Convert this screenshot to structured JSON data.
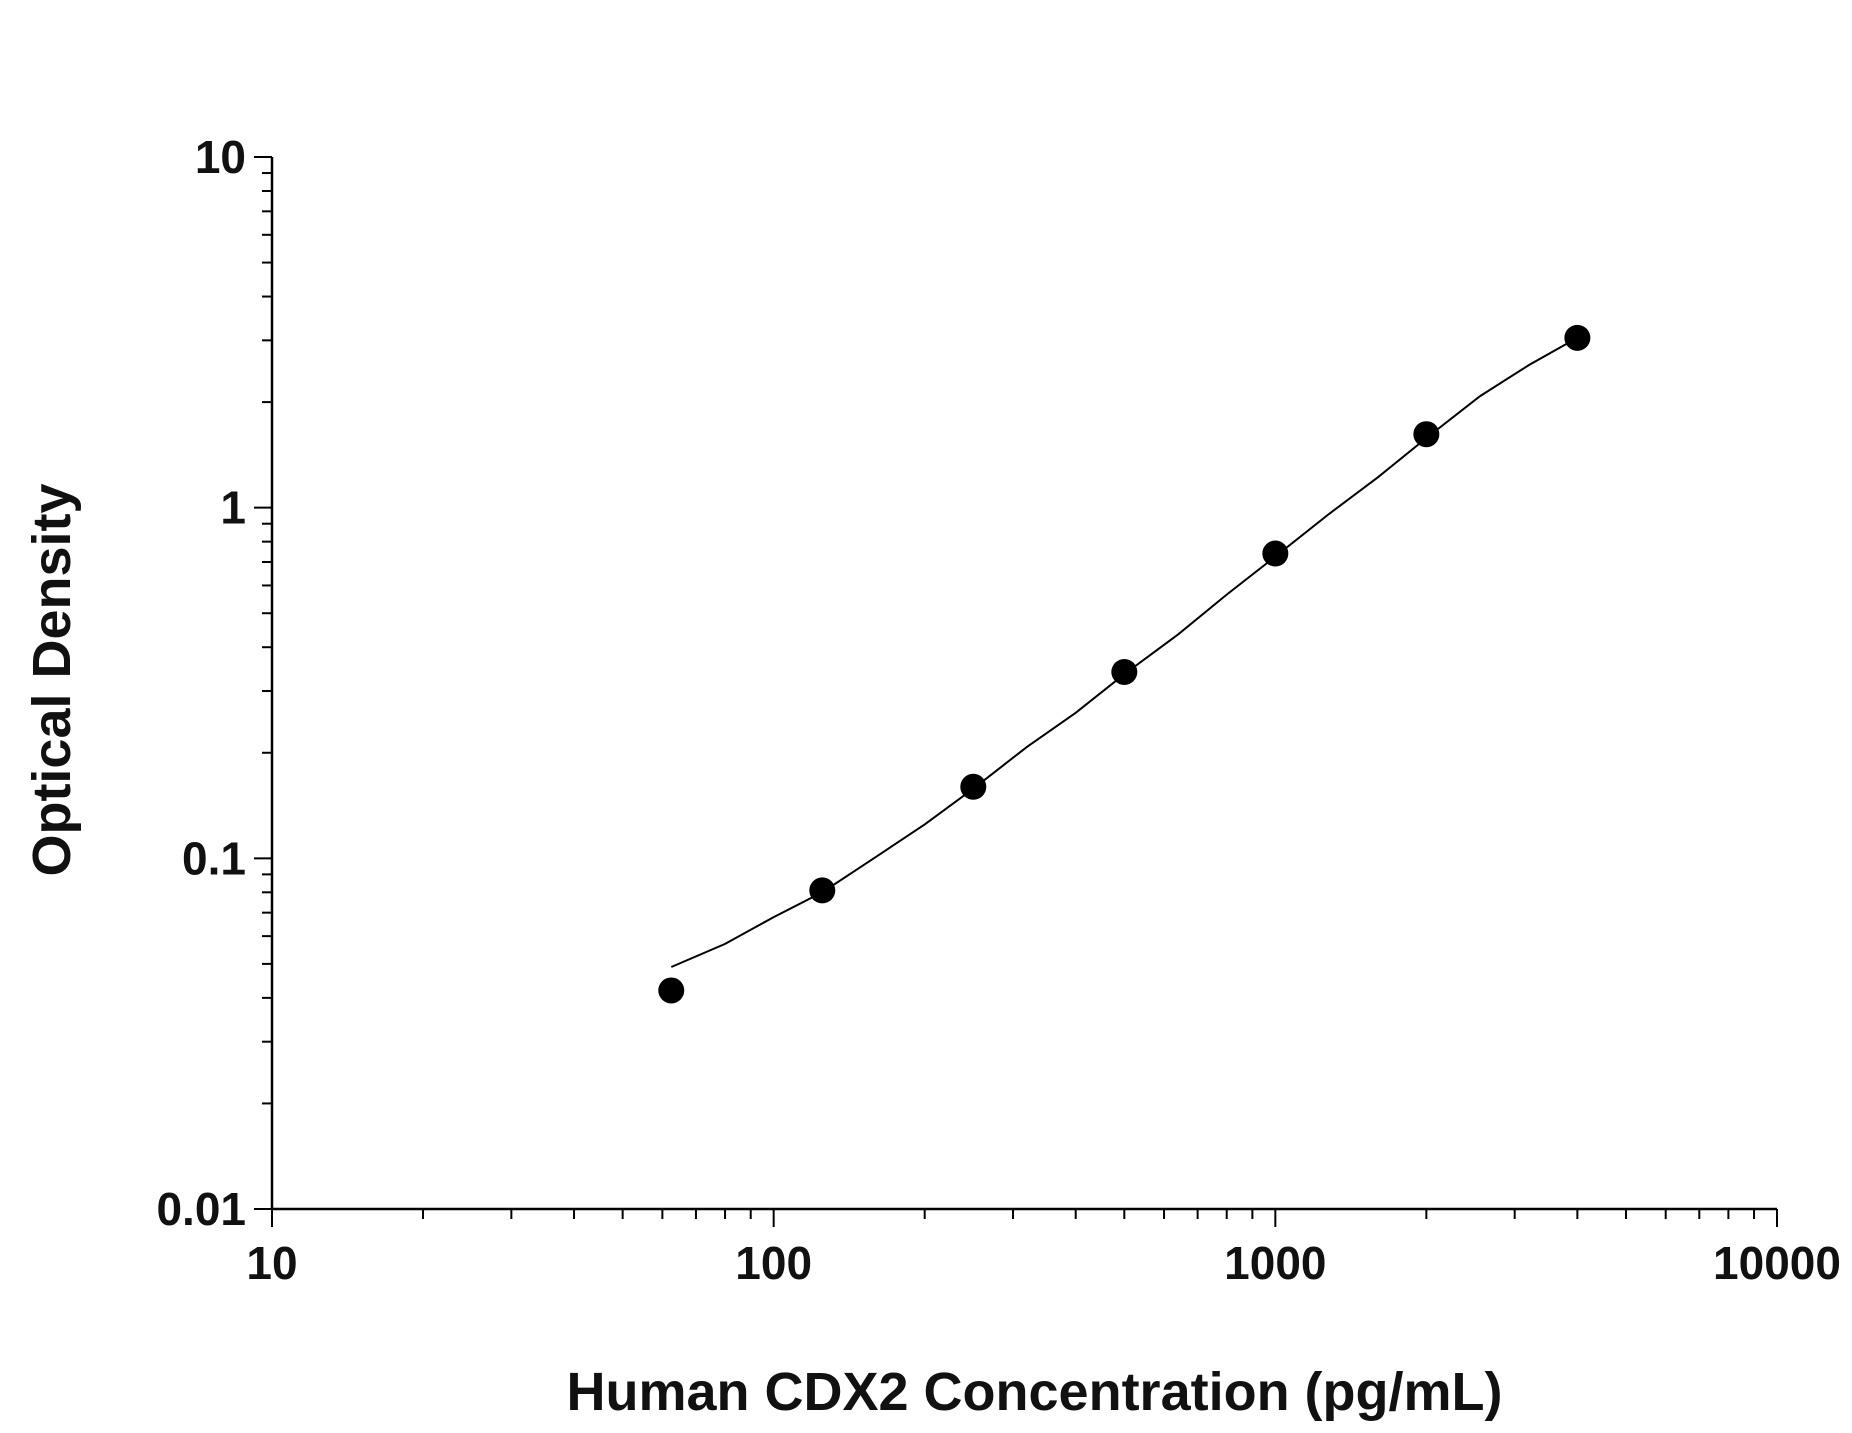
{
  "chart_data": {
    "type": "scatter",
    "title": "",
    "xlabel": "Human CDX2 Concentration (pg/mL)",
    "ylabel": "Optical Density",
    "x_scale": "log",
    "y_scale": "log",
    "xlim": [
      10,
      10000
    ],
    "ylim": [
      0.01,
      10
    ],
    "x_ticks": [
      10,
      100,
      1000,
      10000
    ],
    "x_tick_labels": [
      "10",
      "100",
      "1000",
      "10000"
    ],
    "y_ticks": [
      0.01,
      0.1,
      1,
      10
    ],
    "y_tick_labels": [
      "0.01",
      "0.1",
      "1",
      "10"
    ],
    "grid": false,
    "legend": "none",
    "series": [
      {
        "kind": "points",
        "color": "#000000",
        "x": [
          62.5,
          125,
          250,
          500,
          1000,
          2000,
          4000
        ],
        "y": [
          0.042,
          0.081,
          0.16,
          0.34,
          0.74,
          1.62,
          3.05
        ]
      },
      {
        "kind": "fit-curve",
        "color": "#000000",
        "x": [
          62.5,
          80,
          100,
          125,
          160,
          200,
          250,
          320,
          400,
          500,
          640,
          800,
          1000,
          1280,
          1600,
          2000,
          2560,
          3200,
          4000
        ],
        "y": [
          0.049,
          0.057,
          0.068,
          0.08,
          0.101,
          0.125,
          0.158,
          0.208,
          0.26,
          0.335,
          0.435,
          0.565,
          0.725,
          0.96,
          1.22,
          1.58,
          2.08,
          2.55,
          3.05
        ]
      }
    ]
  }
}
